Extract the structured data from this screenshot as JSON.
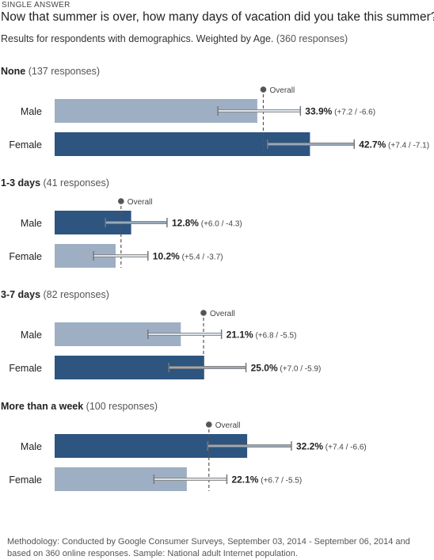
{
  "header": {
    "type_label": "SINGLE ANSWER",
    "question": "Now that summer is over, how many days of vacation did you take this summer?",
    "subtitle": "Results for respondents with demographics. Weighted by Age.",
    "total_responses": "(360 responses)"
  },
  "footer": {
    "methodology": "Methodology: Conducted by Google Consumer Surveys, September 03, 2014 - September 06, 2014 and based on 360 online responses. Sample: National adult Internet population."
  },
  "colors": {
    "bar_above": "#2d5580",
    "bar_below": "#9eafc4",
    "overall_line": "#555555",
    "error_bar": "#777777"
  },
  "chart_data": {
    "type": "bar",
    "orientation": "horizontal",
    "unit": "%",
    "overall_label": "Overall",
    "xlim": [
      0,
      55
    ],
    "groups": [
      {
        "name": "None",
        "responses": "(137 responses)",
        "overall": 34.9,
        "bars": [
          {
            "label": "Male",
            "value": 33.9,
            "value_text": "33.9%",
            "plus": 7.2,
            "minus": 6.6,
            "err_text": "(+7.2 / -6.6)"
          },
          {
            "label": "Female",
            "value": 42.7,
            "value_text": "42.7%",
            "plus": 7.4,
            "minus": 7.1,
            "err_text": "(+7.4 / -7.1)"
          }
        ]
      },
      {
        "name": "1-3 days",
        "responses": "(41 responses)",
        "overall": 11.1,
        "bars": [
          {
            "label": "Male",
            "value": 12.8,
            "value_text": "12.8%",
            "plus": 6.0,
            "minus": 4.3,
            "err_text": "(+6.0 / -4.3)"
          },
          {
            "label": "Female",
            "value": 10.2,
            "value_text": "10.2%",
            "plus": 5.4,
            "minus": 3.7,
            "err_text": "(+5.4 / -3.7)"
          }
        ]
      },
      {
        "name": "3-7 days",
        "responses": "(82 responses)",
        "overall": 24.9,
        "bars": [
          {
            "label": "Male",
            "value": 21.1,
            "value_text": "21.1%",
            "plus": 6.8,
            "minus": 5.5,
            "err_text": "(+6.8 / -5.5)"
          },
          {
            "label": "Female",
            "value": 25.0,
            "value_text": "25.0%",
            "plus": 7.0,
            "minus": 5.9,
            "err_text": "(+7.0 / -5.9)"
          }
        ]
      },
      {
        "name": "More than a week",
        "responses": "(100 responses)",
        "overall": 25.8,
        "bars": [
          {
            "label": "Male",
            "value": 32.2,
            "value_text": "32.2%",
            "plus": 7.4,
            "minus": 6.6,
            "err_text": "(+7.4 / -6.6)"
          },
          {
            "label": "Female",
            "value": 22.1,
            "value_text": "22.1%",
            "plus": 6.7,
            "minus": 5.5,
            "err_text": "(+6.7 / -5.5)"
          }
        ]
      }
    ]
  }
}
